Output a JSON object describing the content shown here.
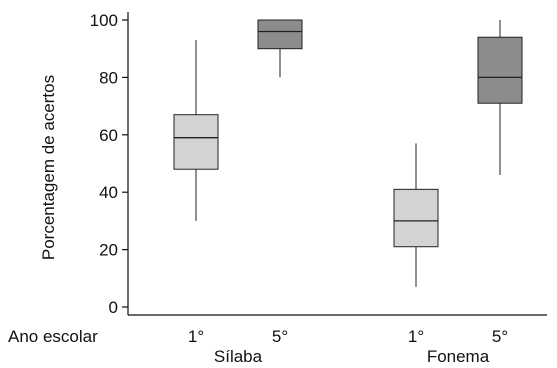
{
  "chart_data": {
    "type": "box",
    "title": "",
    "ylabel": "Porcentagem de acertos",
    "xlabel": "",
    "row_label": "Ano escolar",
    "ylim": [
      0,
      100
    ],
    "yticks": [
      0,
      20,
      40,
      60,
      80,
      100
    ],
    "ytick_labels": [
      "0",
      "20",
      "40",
      "60",
      "80",
      "100"
    ],
    "grid": false,
    "legend": "none",
    "groups": [
      {
        "label": "Sílaba",
        "boxes": [
          {
            "label": "1°",
            "min": 30,
            "q1": 48,
            "median": 59,
            "q3": 67,
            "max": 93,
            "color": "#d3d3d3"
          },
          {
            "label": "5°",
            "min": 80,
            "q1": 90,
            "median": 96,
            "q3": 100,
            "max": 100,
            "color": "#8c8c8c"
          }
        ]
      },
      {
        "label": "Fonema",
        "boxes": [
          {
            "label": "1°",
            "min": 7,
            "q1": 21,
            "median": 30,
            "q3": 41,
            "max": 57,
            "color": "#d3d3d3"
          },
          {
            "label": "5°",
            "min": 46,
            "q1": 71,
            "median": 80,
            "q3": 94,
            "max": 100,
            "color": "#8c8c8c"
          }
        ]
      }
    ]
  }
}
